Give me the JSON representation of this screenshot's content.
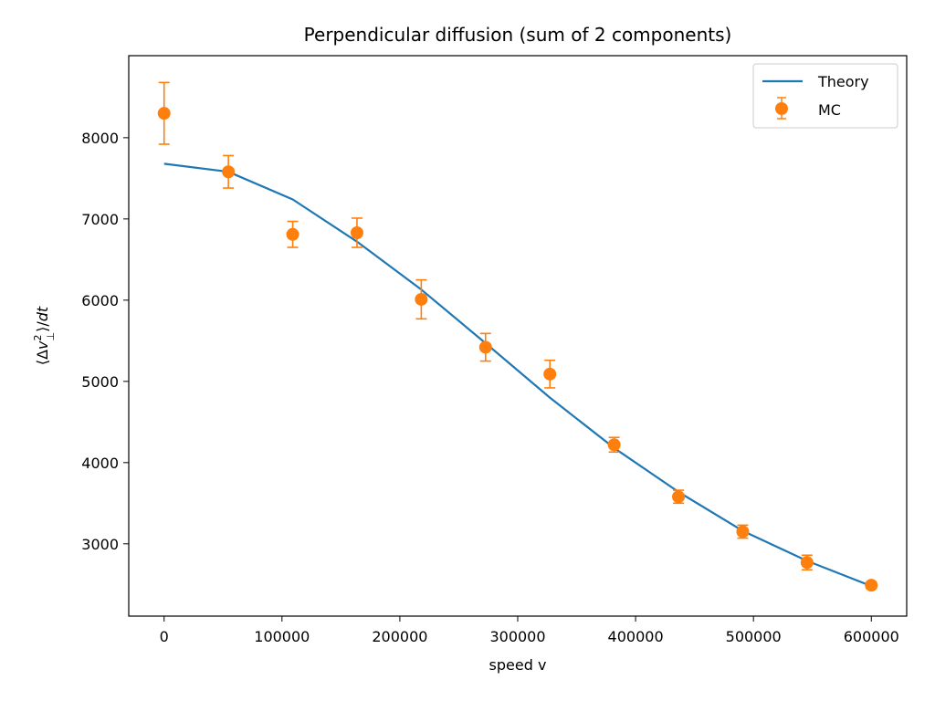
{
  "chart_data": {
    "type": "line",
    "title": "Perpendicular diffusion (sum of 2 components)",
    "xlabel": "speed v",
    "ylabel": "⟨Δv⊥²⟩/dt",
    "xlim": [
      -30000,
      630000
    ],
    "ylim": [
      2110,
      9010
    ],
    "xticks": [
      0,
      100000,
      200000,
      300000,
      400000,
      500000,
      600000
    ],
    "yticks": [
      3000,
      4000,
      5000,
      6000,
      7000,
      8000
    ],
    "legend": {
      "position": "top-right",
      "entries": [
        "Theory",
        "MC"
      ]
    },
    "grid": false,
    "colors": {
      "theory": "#1f77b4",
      "mc": "#ff7f0e"
    },
    "series": [
      {
        "name": "Theory",
        "type": "line",
        "x": [
          0,
          54545,
          109091,
          163636,
          218182,
          272727,
          327273,
          381818,
          436364,
          490909,
          545455,
          600000
        ],
        "y": [
          7680,
          7580,
          7240,
          6720,
          6130,
          5470,
          4800,
          4180,
          3640,
          3160,
          2790,
          2480
        ]
      },
      {
        "name": "MC",
        "type": "errorbar",
        "x": [
          0,
          54545,
          109091,
          163636,
          218182,
          272727,
          327273,
          381818,
          436364,
          490909,
          545455,
          600000
        ],
        "y": [
          8300,
          7580,
          6810,
          6830,
          6010,
          5420,
          5090,
          4220,
          3580,
          3150,
          2770,
          2490
        ],
        "yerr": [
          380,
          200,
          160,
          180,
          240,
          170,
          170,
          90,
          80,
          80,
          90,
          40
        ]
      }
    ]
  }
}
